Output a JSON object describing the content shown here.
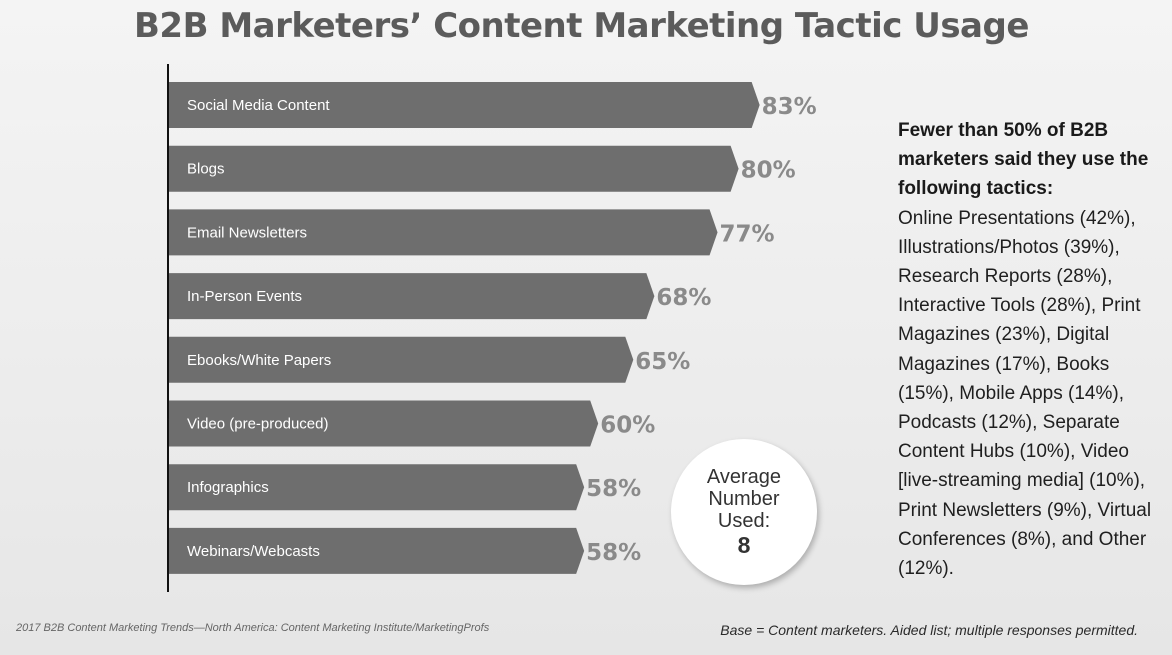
{
  "title": "B2B Marketers’ Content Marketing Tactic Usage",
  "chart_data": {
    "type": "bar",
    "orientation": "horizontal",
    "categories": [
      "Social Media Content",
      "Blogs",
      "Email Newsletters",
      "In-Person Events",
      "Ebooks/White Papers",
      "Video (pre-produced)",
      "Infographics",
      "Webinars/Webcasts"
    ],
    "values": [
      83,
      80,
      77,
      68,
      65,
      60,
      58,
      58
    ],
    "value_labels": [
      "83%",
      "80%",
      "77%",
      "68%",
      "65%",
      "60%",
      "58%",
      "58%"
    ],
    "unit": "%",
    "xlim": [
      0,
      100
    ],
    "grid": false,
    "title": "B2B Marketers’ Content Marketing Tactic Usage"
  },
  "badge": {
    "label": "Average Number Used:",
    "value": "8"
  },
  "side_note": {
    "heading": "Fewer than 50% of B2B marketers said they use the following tactics:",
    "body": "Online Presentations (42%), Illustrations/Photos (39%), Research Reports (28%), Interactive Tools (28%), Print Magazines (23%), Digital Magazines (17%), Books (15%), Mobile Apps (14%), Podcasts (12%), Separate Content Hubs (10%), Video [live-streaming media] (10%), Print Newsletters (9%), Virtual Conferences (8%), and Other (12%)."
  },
  "footer": {
    "source": "2017 B2B Content Marketing Trends—North America: Content Marketing Institute/MarketingProfs",
    "base": "Base = Content marketers. Aided list; multiple responses permitted."
  },
  "colors": {
    "bar": "#6e6e6e",
    "value_label": "#8a8a8a",
    "axis": "#111111"
  }
}
